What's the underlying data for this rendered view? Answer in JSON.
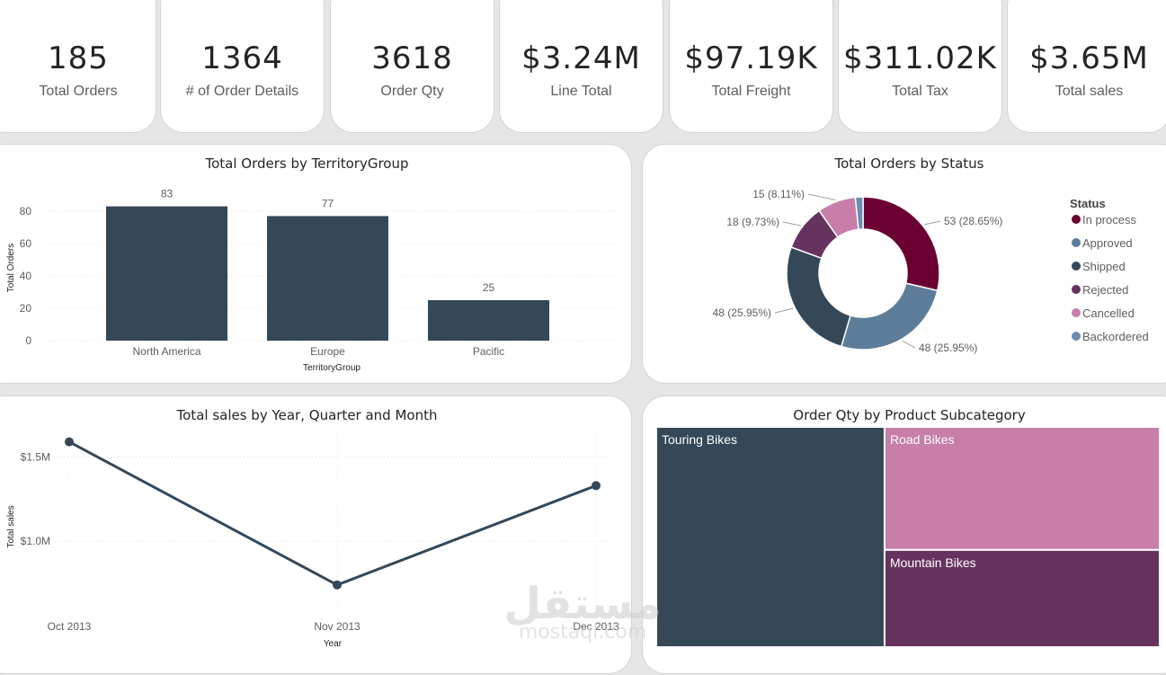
{
  "kpis": [
    {
      "value": "185",
      "label": "Total Orders"
    },
    {
      "value": "1364",
      "label": "# of Order Details"
    },
    {
      "value": "3618",
      "label": "Order Qty"
    },
    {
      "value": "$3.24M",
      "label": "Line Total"
    },
    {
      "value": "$97.19K",
      "label": "Total Freight"
    },
    {
      "value": "$311.02K",
      "label": "Total Tax"
    },
    {
      "value": "$3.65M",
      "label": "Total sales"
    }
  ],
  "watermark": {
    "arabic": "مستقل",
    "latin": "mostaql.com"
  },
  "colors": {
    "bar": "#344858",
    "line": "#344858"
  },
  "chart_data": [
    {
      "type": "bar",
      "title": "Total Orders by TerritoryGroup",
      "categories": [
        "North America",
        "Europe",
        "Pacific"
      ],
      "values": [
        83,
        77,
        25
      ],
      "data_labels": [
        "83",
        "77",
        "25"
      ],
      "xlabel": "TerritoryGroup",
      "ylabel": "Total Orders",
      "ylim": [
        0,
        90
      ],
      "yticks": [
        0,
        20,
        40,
        60,
        80
      ],
      "grid": true
    },
    {
      "type": "pie",
      "title": "Total Orders by Status",
      "legend_title": "Status",
      "legend_position": "right",
      "slices": [
        {
          "name": "In process",
          "value": 53,
          "label": "53 (28.65%)",
          "color": "#6b0033"
        },
        {
          "name": "Approved",
          "value": 48,
          "label": "48 (25.95%)",
          "color": "#5d7d9a"
        },
        {
          "name": "Shipped",
          "value": 48,
          "label": "48 (25.95%)",
          "color": "#344858"
        },
        {
          "name": "Rejected",
          "value": 18,
          "label": "18 (9.73%)",
          "color": "#66335f"
        },
        {
          "name": "Cancelled",
          "value": 15,
          "label": "15 (8.11%)",
          "color": "#c77ea8"
        },
        {
          "name": "Backordered",
          "value": 3,
          "label": "",
          "color": "#6b8cb3"
        }
      ]
    },
    {
      "type": "line",
      "title": "Total sales by Year, Quarter and Month",
      "categories": [
        "Oct 2013",
        "Nov 2013",
        "Dec 2013"
      ],
      "values": [
        1.59,
        0.74,
        1.33
      ],
      "xlabel": "Year",
      "ylabel": "Total sales",
      "ylim": [
        0.6,
        1.7
      ],
      "yticks": [
        {
          "value": 1.0,
          "label": "$1.0M"
        },
        {
          "value": 1.5,
          "label": "$1.5M"
        }
      ],
      "grid": true
    },
    {
      "type": "treemap",
      "title": "Order Qty by Product Subcategory",
      "items": [
        {
          "name": "Touring Bikes",
          "value": 1560,
          "color": "#344858"
        },
        {
          "name": "Road Bikes",
          "value": 1050,
          "color": "#c77ea8"
        },
        {
          "name": "Mountain Bikes",
          "value": 830,
          "color": "#66335f"
        }
      ]
    }
  ]
}
